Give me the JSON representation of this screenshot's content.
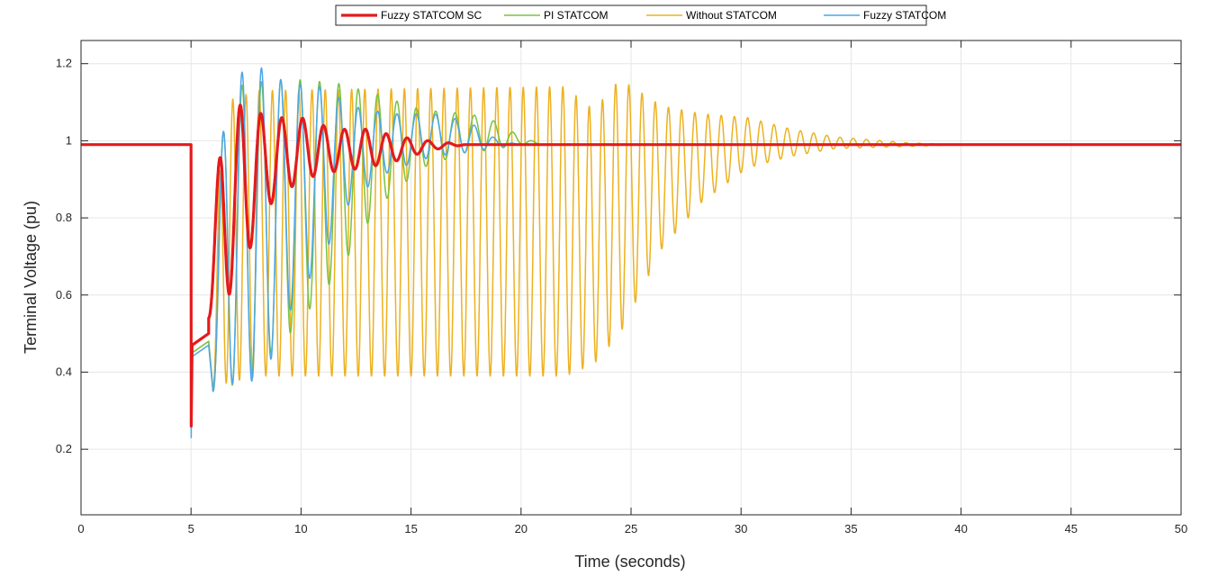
{
  "chart_data": {
    "type": "line",
    "xlabel": "Time (seconds)",
    "ylabel": "Terminal Voltage (pu)",
    "xlim": [
      0,
      50
    ],
    "ylim": [
      0.03,
      1.26
    ],
    "xticks": [
      0,
      5,
      10,
      15,
      20,
      25,
      30,
      35,
      40,
      45,
      50
    ],
    "yticks": [
      0.2,
      0.4,
      0.6,
      0.8,
      1.0,
      1.2
    ],
    "ytick_labels": [
      "0.2",
      "0.4",
      "0.6",
      "0.8",
      "1",
      "1.2"
    ],
    "grid": true,
    "legend_position": "top",
    "series": [
      {
        "name": "Without STATCOM",
        "color": "#EDB120",
        "width": 1.5,
        "fault_time": 5.0,
        "pre_fault": 0.99,
        "fault_min": 0.26,
        "fault_level": 0.45,
        "clear_time": 5.8,
        "osc_start": 6.0,
        "period": 0.6,
        "envelope": [
          [
            6.0,
            0.36,
            0.62
          ],
          [
            6.5,
            0.37,
            1.1
          ],
          [
            8.0,
            0.39,
            1.13
          ],
          [
            22.0,
            0.39,
            1.14
          ],
          [
            23.3,
            0.42,
            1.08
          ],
          [
            24.5,
            0.5,
            1.16
          ],
          [
            26.4,
            0.72,
            1.09
          ],
          [
            28.2,
            0.84,
            1.07
          ],
          [
            30.3,
            0.93,
            1.06
          ],
          [
            32.3,
            0.96,
            1.03
          ],
          [
            34.3,
            0.98,
            1.01
          ],
          [
            37.5,
            0.985,
            0.995
          ],
          [
            40.0,
            0.99,
            0.99
          ],
          [
            50.0,
            0.99,
            0.99
          ]
        ],
        "final": 0.99
      },
      {
        "name": "PI STATCOM",
        "color": "#77C344",
        "width": 1.5,
        "fault_time": 5.0,
        "pre_fault": 0.99,
        "fault_min": 0.26,
        "fault_level": 0.45,
        "clear_time": 5.8,
        "osc_start": 6.0,
        "period": 0.88,
        "envelope": [
          [
            6.0,
            0.35,
            0.7
          ],
          [
            6.6,
            0.36,
            1.12
          ],
          [
            7.5,
            0.38,
            1.15
          ],
          [
            9.5,
            0.5,
            1.16
          ],
          [
            11.6,
            0.65,
            1.15
          ],
          [
            13.5,
            0.83,
            1.12
          ],
          [
            15.5,
            0.93,
            1.08
          ],
          [
            17.5,
            0.97,
            1.07
          ],
          [
            18.5,
            0.975,
            1.06
          ],
          [
            20.0,
            0.99,
            1.01
          ],
          [
            21.0,
            0.99,
            0.99
          ],
          [
            50.0,
            0.99,
            0.99
          ]
        ],
        "final": 0.99
      },
      {
        "name": "Fuzzy STATCOM",
        "color": "#4DA6E8",
        "width": 1.5,
        "fault_time": 5.0,
        "pre_fault": 0.99,
        "fault_min": 0.23,
        "fault_level": 0.44,
        "clear_time": 5.8,
        "osc_start": 6.0,
        "period": 0.88,
        "envelope": [
          [
            6.0,
            0.35,
            0.75
          ],
          [
            6.7,
            0.37,
            1.17
          ],
          [
            8.3,
            0.38,
            1.19
          ],
          [
            9.3,
            0.54,
            1.15
          ],
          [
            11.0,
            0.7,
            1.14
          ],
          [
            12.3,
            0.85,
            1.09
          ],
          [
            14.0,
            0.92,
            1.07
          ],
          [
            16.0,
            0.96,
            1.07
          ],
          [
            17.6,
            0.97,
            1.05
          ],
          [
            19.0,
            0.985,
            1.0
          ],
          [
            20.0,
            0.99,
            0.99
          ],
          [
            50.0,
            0.99,
            0.99
          ]
        ],
        "final": 0.99
      },
      {
        "name": "Fuzzy STATCOM SC",
        "color": "#E41A1C",
        "width": 3.2,
        "fault_time": 5.0,
        "pre_fault": 0.99,
        "fault_min": 0.26,
        "fault_level": 0.47,
        "clear_time": 5.8,
        "osc_start": 5.8,
        "period": 0.95,
        "envelope": [
          [
            5.8,
            0.54,
            0.74
          ],
          [
            6.4,
            0.56,
            1.0
          ],
          [
            7.3,
            0.67,
            1.1
          ],
          [
            8.5,
            0.83,
            1.06
          ],
          [
            10.0,
            0.9,
            1.06
          ],
          [
            11.5,
            0.92,
            1.03
          ],
          [
            13.0,
            0.93,
            1.03
          ],
          [
            14.5,
            0.95,
            1.01
          ],
          [
            15.8,
            0.975,
            1.0
          ],
          [
            17.5,
            0.99,
            0.99
          ],
          [
            50.0,
            0.99,
            0.99
          ]
        ],
        "final": 0.99
      }
    ]
  }
}
